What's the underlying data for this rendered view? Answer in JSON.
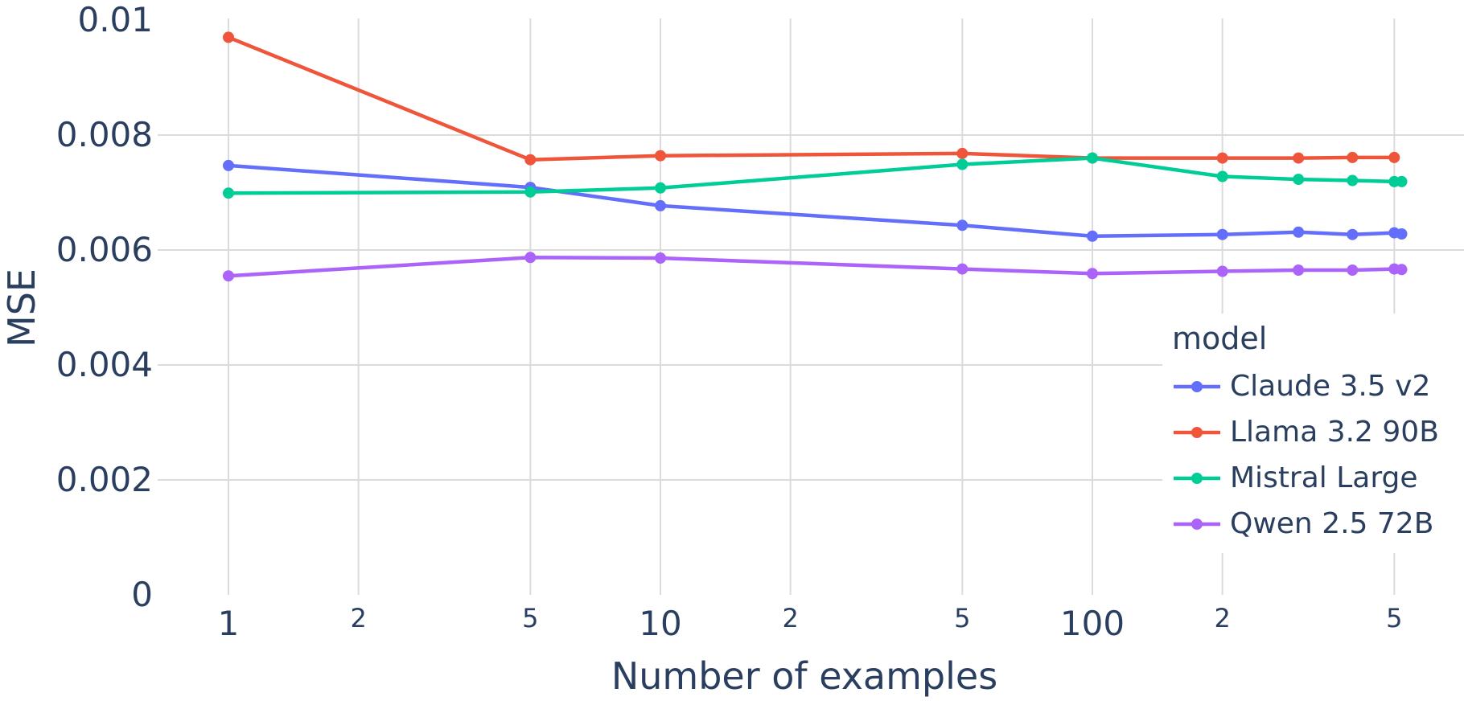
{
  "figure": {
    "background_color": "#ffffff",
    "text_color": "#2a3f5f",
    "grid_color": "#DBDBDB"
  },
  "chart_data": {
    "type": "line",
    "title": "",
    "x_axis": {
      "title": "Number of examples",
      "scale": "log",
      "range_shown": [
        1,
        520
      ],
      "ticks": [
        {
          "label": "1",
          "value": 1,
          "major": true
        },
        {
          "label": "2",
          "value": 2,
          "major": false
        },
        {
          "label": "5",
          "value": 5,
          "major": false
        },
        {
          "label": "10",
          "value": 10,
          "major": true
        },
        {
          "label": "2",
          "value": 20,
          "major": false
        },
        {
          "label": "5",
          "value": 50,
          "major": false
        },
        {
          "label": "100",
          "value": 100,
          "major": true
        },
        {
          "label": "2",
          "value": 200,
          "major": false
        },
        {
          "label": "5",
          "value": 500,
          "major": false
        }
      ]
    },
    "y_axis": {
      "title": "MSE",
      "scale": "linear",
      "range": [
        0,
        0.01
      ],
      "ticks": [
        {
          "label": "0",
          "value": 0
        },
        {
          "label": "0.002",
          "value": 0.002
        },
        {
          "label": "0.004",
          "value": 0.004
        },
        {
          "label": "0.006",
          "value": 0.006
        },
        {
          "label": "0.008",
          "value": 0.008
        },
        {
          "label": "0.01",
          "value": 0.01
        }
      ],
      "grid": true
    },
    "legend": {
      "title": "model",
      "position": "right"
    },
    "series": [
      {
        "name": "Claude 3.5 v2",
        "color": "#636EFA",
        "x": [
          1,
          5,
          10,
          50,
          100,
          200,
          300,
          400,
          500,
          520
        ],
        "y": [
          0.00747,
          0.00709,
          0.00677,
          0.00643,
          0.00624,
          0.00627,
          0.00631,
          0.00627,
          0.0063,
          0.00628
        ]
      },
      {
        "name": "Llama 3.2 90B",
        "color": "#EF553B",
        "x": [
          1,
          5,
          10,
          50,
          100,
          200,
          300,
          400,
          500
        ],
        "y": [
          0.0097,
          0.00757,
          0.00764,
          0.00768,
          0.0076,
          0.0076,
          0.0076,
          0.00761,
          0.00761
        ]
      },
      {
        "name": "Mistral Large",
        "color": "#00CC96",
        "x": [
          1,
          5,
          10,
          50,
          100,
          200,
          300,
          400,
          500,
          520
        ],
        "y": [
          0.00699,
          0.00701,
          0.00708,
          0.00749,
          0.0076,
          0.00728,
          0.00723,
          0.00721,
          0.00719,
          0.00719
        ]
      },
      {
        "name": "Qwen 2.5 72B",
        "color": "#AB63FA",
        "x": [
          1,
          5,
          10,
          50,
          100,
          200,
          300,
          400,
          500,
          520
        ],
        "y": [
          0.00555,
          0.00587,
          0.00586,
          0.00567,
          0.00559,
          0.00563,
          0.00565,
          0.00565,
          0.00567,
          0.00566
        ]
      }
    ]
  }
}
